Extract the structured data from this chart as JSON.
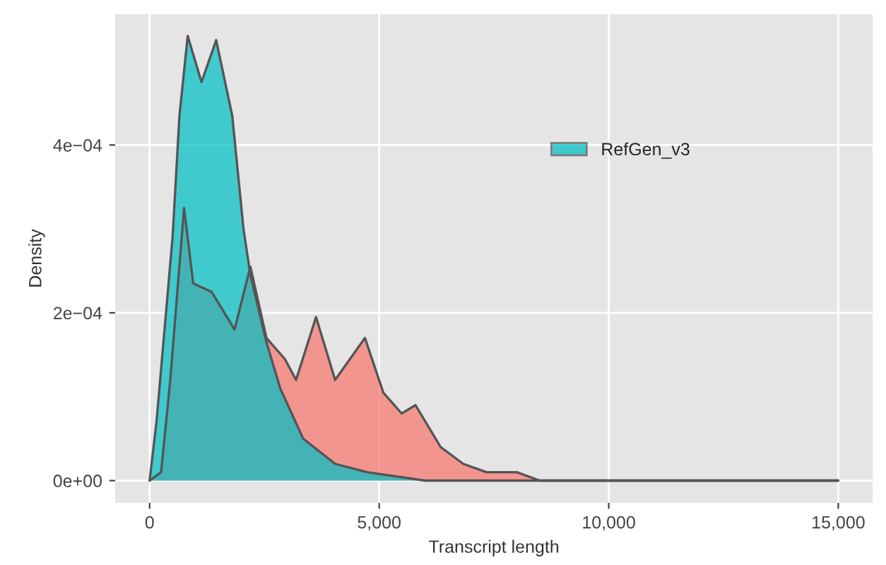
{
  "chart_data": {
    "type": "area",
    "xlabel": "Transcript length",
    "ylabel": "Density",
    "xlim": [
      -750,
      15750
    ],
    "xticks": [
      {
        "value": 0,
        "label": "0"
      },
      {
        "value": 5000,
        "label": "5,000"
      },
      {
        "value": 10000,
        "label": "10,000"
      },
      {
        "value": 15000,
        "label": "15,000"
      }
    ],
    "ylim": [
      -2.65e-05,
      0.000556
    ],
    "yticks": [
      {
        "value": 0,
        "label": "0e+00"
      },
      {
        "value": 0.0002,
        "label": "2e−04"
      },
      {
        "value": 0.0004,
        "label": "4e−04"
      }
    ],
    "grid": true,
    "legend": "top right",
    "series": [
      {
        "color": "#f8766d",
        "x": [
          0,
          250,
          450,
          750,
          950,
          1350,
          1850,
          2195,
          2545,
          2945,
          3190,
          3625,
          4040,
          4690,
          5090,
          5490,
          5790,
          6340,
          6830,
          7340,
          8000,
          8500,
          9500,
          12000,
          15000
        ],
        "values": [
          0,
          1e-05,
          0.00012,
          0.000325,
          0.000235,
          0.000225,
          0.00018,
          0.000255,
          0.00017,
          0.000145,
          0.00012,
          0.000195,
          0.00012,
          0.00017,
          0.000105,
          8e-05,
          9e-05,
          4e-05,
          2e-05,
          1e-05,
          1e-05,
          0,
          0,
          0,
          0
        ]
      },
      {
        "name": "RefGen_v3",
        "color": "#00bfc4",
        "x": [
          0,
          150,
          500,
          650,
          830,
          1130,
          1450,
          1800,
          2045,
          2195,
          2545,
          2845,
          3345,
          4040,
          4740,
          6000,
          8000,
          10000,
          15000
        ],
        "values": [
          0,
          7e-05,
          0.00029,
          0.000435,
          0.00053,
          0.000475,
          0.000525,
          0.000435,
          0.0003,
          0.000245,
          0.000165,
          0.00011,
          5e-05,
          2e-05,
          1e-05,
          0,
          0,
          0,
          0
        ]
      }
    ]
  }
}
